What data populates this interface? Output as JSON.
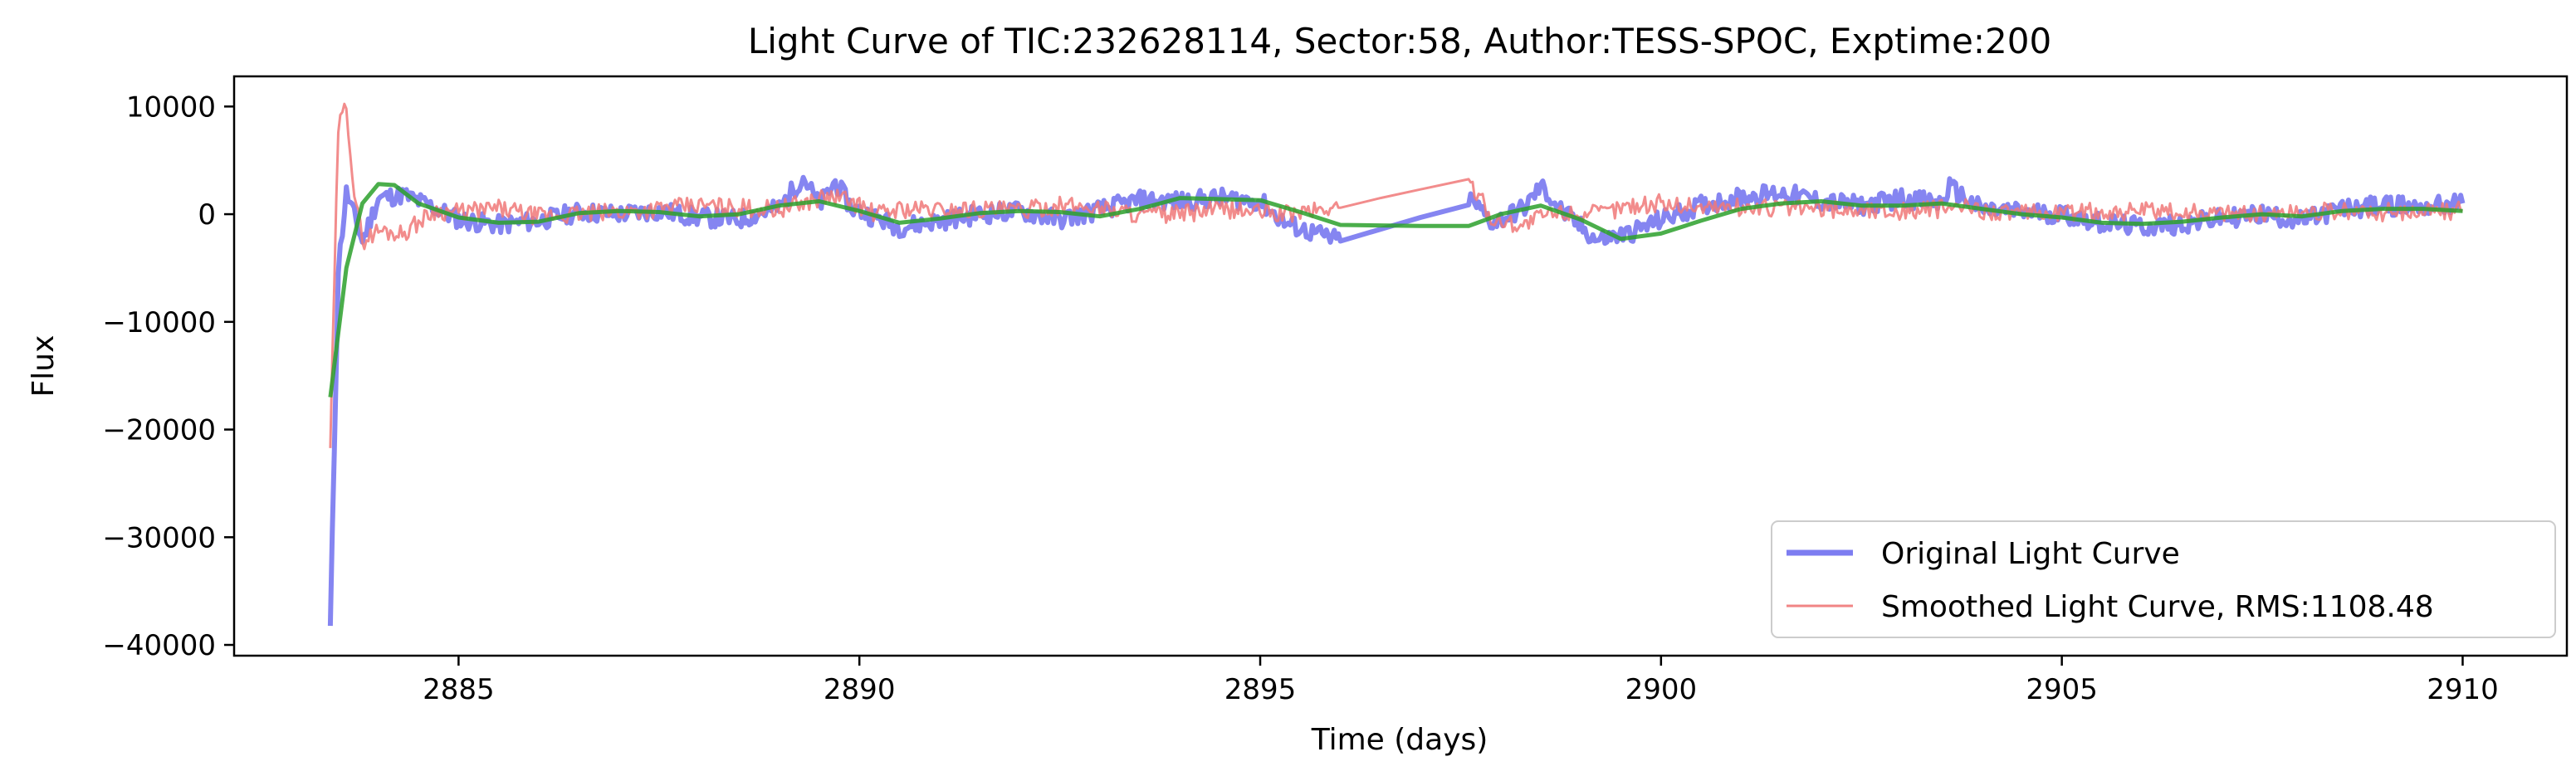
{
  "chart_data": {
    "type": "line",
    "title": "Light Curve of TIC:232628114, Sector:58, Author:TESS-SPOC, Exptime:200",
    "xlabel": "Time (days)",
    "ylabel": "Flux",
    "xlim": [
      2882.2,
      2911.3
    ],
    "ylim": [
      -41000,
      12800
    ],
    "xticks": [
      2885,
      2890,
      2895,
      2900,
      2905,
      2910
    ],
    "xtick_labels": [
      "2885",
      "2890",
      "2895",
      "2900",
      "2905",
      "2910"
    ],
    "yticks": [
      10000,
      0,
      -10000,
      -20000,
      -30000,
      -40000
    ],
    "ytick_labels": [
      "10000",
      "0",
      "−10000",
      "−20000",
      "−30000",
      "−40000"
    ],
    "grid": false,
    "legend_position": "lower-right",
    "series": [
      {
        "name": "Original Light Curve",
        "color": "#6666ee",
        "style": "thick-line",
        "x": [
          2883.4,
          2883.5,
          2883.6,
          2883.7,
          2883.8,
          2884.0,
          2884.3,
          2884.7,
          2885.0,
          2885.5,
          2886.0,
          2886.5,
          2887.0,
          2887.5,
          2888.0,
          2888.5,
          2889.0,
          2889.3,
          2889.5,
          2889.7,
          2889.9,
          2890.2,
          2890.5,
          2891.0,
          2891.5,
          2892.0,
          2892.5,
          2893.0,
          2893.5,
          2894.0,
          2894.5,
          2895.0,
          2895.3,
          2895.6,
          2896.0,
          2896.5,
          2897.0,
          2897.6,
          2897.9,
          2898.3,
          2898.5,
          2898.8,
          2899.2,
          2899.6,
          2900.0,
          2900.5,
          2901.0,
          2901.5,
          2902.0,
          2902.5,
          2903.0,
          2903.5,
          2903.6,
          2904.0,
          2904.5,
          2905.0,
          2905.5,
          2906.0,
          2906.5,
          2907.0,
          2907.5,
          2908.0,
          2908.5,
          2909.0,
          2909.5,
          2910.0
        ],
        "y": [
          -38500,
          -5000,
          2000,
          -200,
          -2500,
          1500,
          1800,
          600,
          -500,
          -1000,
          -600,
          200,
          0,
          300,
          -300,
          -500,
          600,
          3500,
          800,
          3000,
          600,
          -300,
          -1200,
          -600,
          0,
          300,
          -500,
          400,
          1300,
          1200,
          1500,
          1200,
          -800,
          -1600,
          -2500,
          -1400,
          -300,
          1500,
          -800,
          600,
          2600,
          0,
          -2400,
          -1800,
          -500,
          800,
          1600,
          2000,
          1200,
          800,
          1500,
          1000,
          2500,
          400,
          200,
          0,
          -800,
          -1200,
          -900,
          -400,
          0,
          -600,
          500,
          800,
          700,
          1000
        ]
      },
      {
        "name": "Smoothed Light Curve, RMS:1108.48",
        "color": "#f07878",
        "style": "thin-noisy-line",
        "x": [
          2883.4,
          2883.5,
          2883.6,
          2883.7,
          2883.8,
          2884.0,
          2884.3,
          2884.7,
          2885.0,
          2885.5,
          2886.0,
          2886.5,
          2887.0,
          2887.5,
          2888.0,
          2888.5,
          2889.0,
          2889.3,
          2889.5,
          2889.7,
          2889.9,
          2890.2,
          2890.5,
          2891.0,
          2891.5,
          2892.0,
          2892.5,
          2893.0,
          2893.5,
          2894.0,
          2894.5,
          2895.0,
          2895.3,
          2895.6,
          2896.0,
          2896.5,
          2897.0,
          2897.6,
          2897.9,
          2898.3,
          2898.5,
          2898.8,
          2899.2,
          2899.6,
          2900.0,
          2900.5,
          2901.0,
          2901.5,
          2902.0,
          2902.5,
          2903.0,
          2903.5,
          2903.6,
          2904.0,
          2904.5,
          2905.0,
          2905.5,
          2906.0,
          2906.5,
          2907.0,
          2907.5,
          2908.0,
          2908.5,
          2909.0,
          2909.5,
          2910.0
        ],
        "y": [
          -21500,
          8000,
          10200,
          2000,
          -2500,
          -1500,
          -1800,
          300,
          200,
          500,
          -200,
          0,
          200,
          500,
          800,
          600,
          500,
          1000,
          1500,
          1600,
          1200,
          0,
          500,
          400,
          500,
          300,
          800,
          600,
          0,
          0,
          500,
          200,
          0,
          300,
          600,
          1500,
          2300,
          3200,
          -500,
          -1000,
          -200,
          200,
          0,
          800,
          1000,
          700,
          600,
          600,
          500,
          400,
          300,
          500,
          700,
          400,
          0,
          200,
          200,
          300,
          100,
          200,
          0,
          300,
          200,
          200,
          300,
          300
        ]
      },
      {
        "name": "",
        "color": "#2ca02c",
        "style": "trend-line",
        "x": [
          2883.4,
          2883.6,
          2883.8,
          2884.0,
          2884.2,
          2884.5,
          2885.0,
          2885.5,
          2886.0,
          2886.5,
          2887.0,
          2887.5,
          2888.0,
          2888.5,
          2889.0,
          2889.5,
          2890.0,
          2890.5,
          2891.0,
          2891.5,
          2892.0,
          2892.5,
          2893.0,
          2893.5,
          2894.0,
          2894.5,
          2895.0,
          2895.5,
          2896.0,
          2897.0,
          2897.6,
          2898.0,
          2898.5,
          2899.0,
          2899.5,
          2900.0,
          2900.5,
          2901.0,
          2901.5,
          2902.0,
          2902.5,
          2903.0,
          2903.5,
          2904.0,
          2904.5,
          2905.0,
          2905.5,
          2906.0,
          2906.5,
          2907.0,
          2907.5,
          2908.0,
          2908.5,
          2909.0,
          2909.5,
          2910.0
        ],
        "y": [
          -17000,
          -5000,
          1000,
          2800,
          2700,
          1000,
          -300,
          -800,
          -700,
          100,
          300,
          200,
          -200,
          0,
          800,
          1200,
          300,
          -800,
          -400,
          100,
          300,
          200,
          -200,
          500,
          1500,
          1400,
          1300,
          200,
          -1000,
          -1100,
          -1100,
          0,
          800,
          -500,
          -2300,
          -1800,
          -600,
          500,
          1000,
          1200,
          800,
          800,
          1000,
          500,
          0,
          -300,
          -800,
          -900,
          -700,
          -300,
          0,
          -200,
          300,
          500,
          500,
          300
        ]
      }
    ]
  }
}
